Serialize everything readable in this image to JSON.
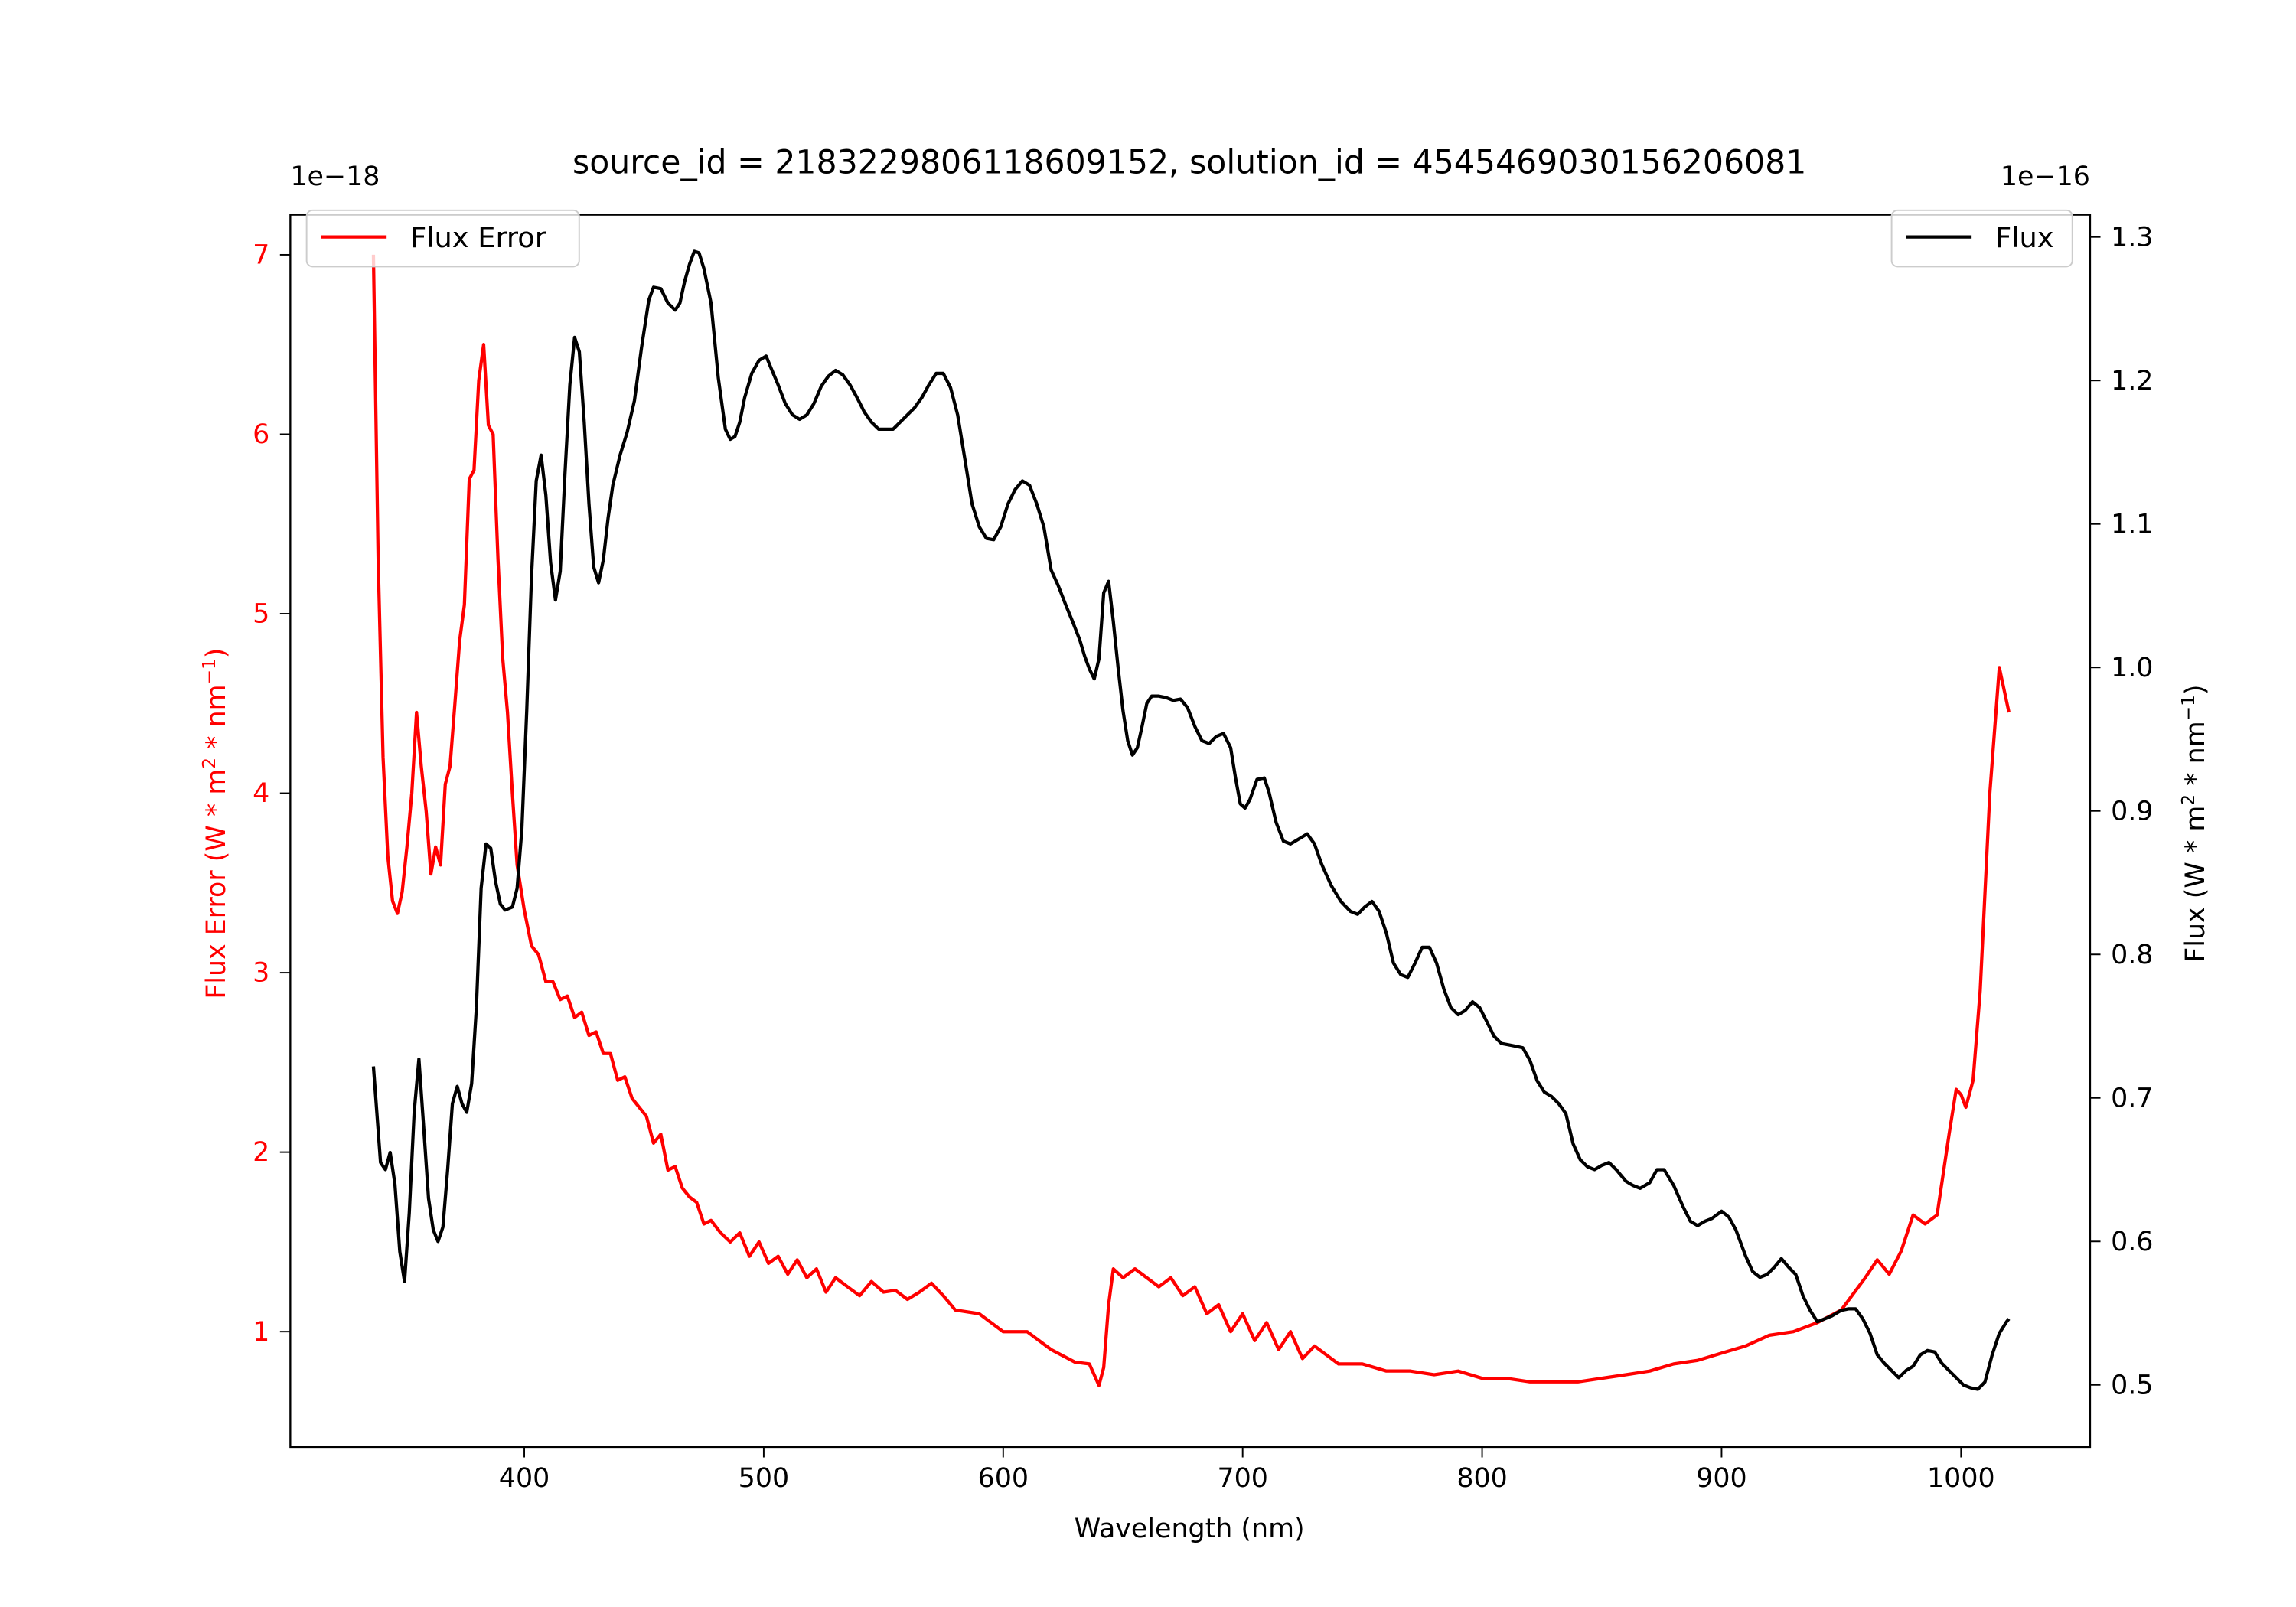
{
  "chart_data": {
    "type": "line",
    "title": "source_id = 2183229806118609152, solution_id = 4545469030156206081",
    "xlabel": "Wavelength (nm)",
    "ylabel_left": "Flux Error (W * m^2 * nm^-1)",
    "ylabel_right": "Flux (W * m^2 * nm^-1)",
    "left_offset_label": "1e−18",
    "right_offset_label": "1e−16",
    "xlim": [
      302.3,
      1053.9
    ],
    "ylim_left": [
      0.357,
      7.223
    ],
    "ylim_right": [
      0.4567,
      1.3155
    ],
    "x_ticks": [
      400,
      500,
      600,
      700,
      800,
      900,
      1000
    ],
    "y_ticks_left": [
      1,
      2,
      3,
      4,
      5,
      6,
      7
    ],
    "y_ticks_right": [
      0.5,
      0.6,
      0.7,
      0.8,
      0.9,
      1.0,
      1.1,
      1.2,
      1.3
    ],
    "grid": false,
    "colors": {
      "flux_error": "#ff0000",
      "flux": "#000000"
    },
    "series": [
      {
        "name": "Flux Error",
        "axis": "left",
        "legend": "top-left",
        "x": [
          337,
          339,
          341,
          343,
          345,
          347,
          349,
          351,
          353,
          355,
          357,
          359,
          361,
          363,
          365,
          367,
          369,
          371,
          373,
          375,
          377,
          379,
          381,
          383,
          385,
          387,
          389,
          391,
          393,
          395,
          397,
          400,
          403,
          406,
          409,
          412,
          415,
          418,
          421,
          424,
          427,
          430,
          433,
          436,
          439,
          442,
          445,
          448,
          451,
          454,
          457,
          460,
          463,
          466,
          469,
          472,
          475,
          478,
          482,
          486,
          490,
          494,
          498,
          502,
          506,
          510,
          514,
          518,
          522,
          526,
          530,
          535,
          540,
          545,
          550,
          555,
          560,
          565,
          570,
          575,
          580,
          590,
          600,
          610,
          620,
          630,
          636,
          640,
          642,
          644,
          646,
          650,
          655,
          660,
          665,
          670,
          675,
          680,
          685,
          690,
          695,
          700,
          705,
          710,
          715,
          720,
          725,
          730,
          740,
          750,
          760,
          770,
          780,
          790,
          800,
          810,
          820,
          830,
          840,
          850,
          860,
          870,
          880,
          890,
          900,
          910,
          920,
          930,
          940,
          950,
          960,
          965,
          970,
          975,
          980,
          985,
          990,
          995,
          998,
          1000,
          1002,
          1005,
          1008,
          1012,
          1016,
          1020
        ],
        "y": [
          7.0,
          5.3,
          4.2,
          3.65,
          3.4,
          3.33,
          3.45,
          3.7,
          4.0,
          4.45,
          4.15,
          3.9,
          3.55,
          3.7,
          3.6,
          4.05,
          4.15,
          4.5,
          4.85,
          5.05,
          5.75,
          5.8,
          6.3,
          6.5,
          6.05,
          6.0,
          5.3,
          4.75,
          4.45,
          4.0,
          3.6,
          3.35,
          3.15,
          3.1,
          2.95,
          2.95,
          2.85,
          2.87,
          2.75,
          2.78,
          2.65,
          2.67,
          2.55,
          2.55,
          2.4,
          2.42,
          2.3,
          2.25,
          2.2,
          2.05,
          2.1,
          1.9,
          1.92,
          1.8,
          1.75,
          1.72,
          1.6,
          1.62,
          1.55,
          1.5,
          1.55,
          1.42,
          1.5,
          1.38,
          1.42,
          1.32,
          1.4,
          1.3,
          1.35,
          1.22,
          1.3,
          1.25,
          1.2,
          1.28,
          1.22,
          1.23,
          1.18,
          1.22,
          1.27,
          1.2,
          1.12,
          1.1,
          1.0,
          1.0,
          0.9,
          0.83,
          0.82,
          0.7,
          0.8,
          1.15,
          1.35,
          1.3,
          1.35,
          1.3,
          1.25,
          1.3,
          1.2,
          1.25,
          1.1,
          1.15,
          1.0,
          1.1,
          0.95,
          1.05,
          0.9,
          1.0,
          0.85,
          0.92,
          0.82,
          0.82,
          0.78,
          0.78,
          0.76,
          0.78,
          0.74,
          0.74,
          0.72,
          0.72,
          0.72,
          0.74,
          0.76,
          0.78,
          0.82,
          0.84,
          0.88,
          0.92,
          0.98,
          1.0,
          1.05,
          1.12,
          1.3,
          1.4,
          1.32,
          1.45,
          1.65,
          1.6,
          1.65,
          2.1,
          2.35,
          2.32,
          2.25,
          2.4,
          2.9,
          4.0,
          4.7,
          4.45
        ]
      },
      {
        "name": "Flux",
        "axis": "right",
        "legend": "top-right",
        "x": [
          337,
          340,
          342,
          344,
          346,
          348,
          350,
          352,
          354,
          356,
          358,
          360,
          362,
          364,
          366,
          368,
          370,
          372,
          374,
          376,
          378,
          380,
          382,
          384,
          386,
          388,
          390,
          392,
          395,
          397,
          399,
          401,
          403,
          405,
          407,
          409,
          411,
          413,
          415,
          417,
          419,
          421,
          423,
          425,
          427,
          429,
          431,
          433,
          435,
          437,
          440,
          443,
          446,
          449,
          452,
          454,
          457,
          460,
          463,
          465,
          467,
          469,
          471,
          473,
          475,
          478,
          481,
          484,
          486,
          488,
          490,
          492,
          495,
          498,
          501,
          503,
          506,
          509,
          512,
          515,
          518,
          521,
          524,
          527,
          530,
          533,
          536,
          539,
          542,
          545,
          548,
          551,
          554,
          557,
          560,
          563,
          566,
          569,
          572,
          575,
          578,
          581,
          584,
          587,
          590,
          593,
          596,
          599,
          602,
          605,
          608,
          611,
          614,
          617,
          620,
          623,
          626,
          629,
          632,
          634,
          636,
          638,
          640,
          642,
          644,
          646,
          648,
          650,
          652,
          654,
          656,
          658,
          660,
          662,
          665,
          668,
          671,
          674,
          677,
          680,
          683,
          686,
          689,
          692,
          695,
          697,
          699,
          701,
          703,
          706,
          709,
          711,
          714,
          717,
          720,
          723,
          727,
          730,
          733,
          737,
          741,
          745,
          748,
          751,
          754,
          757,
          760,
          763,
          766,
          769,
          772,
          775,
          778,
          781,
          784,
          787,
          790,
          793,
          796,
          799,
          802,
          805,
          808,
          811,
          814,
          817,
          820,
          823,
          826,
          829,
          832,
          835,
          838,
          841,
          844,
          847,
          850,
          853,
          856,
          860,
          863,
          866,
          870,
          873,
          876,
          880,
          884,
          887,
          890,
          893,
          896,
          900,
          903,
          906,
          910,
          913,
          916,
          919,
          922,
          925,
          928,
          931,
          934,
          937,
          940,
          943,
          946,
          950,
          953,
          956,
          959,
          962,
          965,
          968,
          971,
          974,
          977,
          980,
          983,
          986,
          989,
          992,
          995,
          998,
          1001,
          1004,
          1007,
          1010,
          1013,
          1016,
          1019,
          1020
        ],
        "y": [
          0.722,
          0.655,
          0.65,
          0.662,
          0.64,
          0.593,
          0.572,
          0.62,
          0.69,
          0.727,
          0.68,
          0.63,
          0.608,
          0.6,
          0.61,
          0.65,
          0.696,
          0.708,
          0.696,
          0.69,
          0.71,
          0.763,
          0.846,
          0.877,
          0.874,
          0.851,
          0.835,
          0.831,
          0.833,
          0.846,
          0.887,
          0.97,
          1.063,
          1.13,
          1.148,
          1.12,
          1.073,
          1.047,
          1.067,
          1.135,
          1.197,
          1.23,
          1.22,
          1.171,
          1.114,
          1.07,
          1.059,
          1.075,
          1.104,
          1.127,
          1.148,
          1.164,
          1.186,
          1.223,
          1.256,
          1.265,
          1.264,
          1.254,
          1.249,
          1.254,
          1.269,
          1.281,
          1.29,
          1.289,
          1.278,
          1.254,
          1.202,
          1.166,
          1.159,
          1.161,
          1.171,
          1.188,
          1.205,
          1.214,
          1.217,
          1.209,
          1.197,
          1.184,
          1.176,
          1.173,
          1.176,
          1.184,
          1.196,
          1.203,
          1.207,
          1.204,
          1.197,
          1.188,
          1.178,
          1.171,
          1.166,
          1.166,
          1.166,
          1.171,
          1.176,
          1.181,
          1.188,
          1.197,
          1.205,
          1.205,
          1.195,
          1.176,
          1.145,
          1.114,
          1.098,
          1.09,
          1.089,
          1.098,
          1.114,
          1.124,
          1.13,
          1.127,
          1.114,
          1.098,
          1.068,
          1.057,
          1.044,
          1.032,
          1.019,
          1.008,
          0.999,
          0.992,
          1.006,
          1.052,
          1.06,
          1.032,
          1.0,
          0.97,
          0.949,
          0.939,
          0.944,
          0.959,
          0.975,
          0.98,
          0.98,
          0.979,
          0.977,
          0.978,
          0.972,
          0.959,
          0.949,
          0.947,
          0.952,
          0.954,
          0.944,
          0.923,
          0.905,
          0.902,
          0.908,
          0.922,
          0.923,
          0.913,
          0.892,
          0.879,
          0.877,
          0.88,
          0.884,
          0.877,
          0.863,
          0.848,
          0.837,
          0.83,
          0.828,
          0.833,
          0.837,
          0.83,
          0.815,
          0.794,
          0.786,
          0.784,
          0.794,
          0.805,
          0.805,
          0.794,
          0.776,
          0.763,
          0.758,
          0.761,
          0.767,
          0.763,
          0.753,
          0.743,
          0.738,
          0.737,
          0.736,
          0.735,
          0.726,
          0.712,
          0.704,
          0.701,
          0.696,
          0.689,
          0.668,
          0.657,
          0.652,
          0.65,
          0.653,
          0.655,
          0.65,
          0.642,
          0.639,
          0.637,
          0.641,
          0.65,
          0.65,
          0.639,
          0.624,
          0.614,
          0.611,
          0.614,
          0.616,
          0.621,
          0.617,
          0.608,
          0.59,
          0.579,
          0.575,
          0.577,
          0.582,
          0.588,
          0.582,
          0.577,
          0.562,
          0.552,
          0.544,
          0.546,
          0.548,
          0.552,
          0.553,
          0.553,
          0.546,
          0.536,
          0.521,
          0.515,
          0.51,
          0.505,
          0.51,
          0.513,
          0.521,
          0.524,
          0.523,
          0.515,
          0.51,
          0.505,
          0.5,
          0.498,
          0.497,
          0.502,
          0.521,
          0.536,
          0.544,
          0.546
        ]
      }
    ]
  }
}
